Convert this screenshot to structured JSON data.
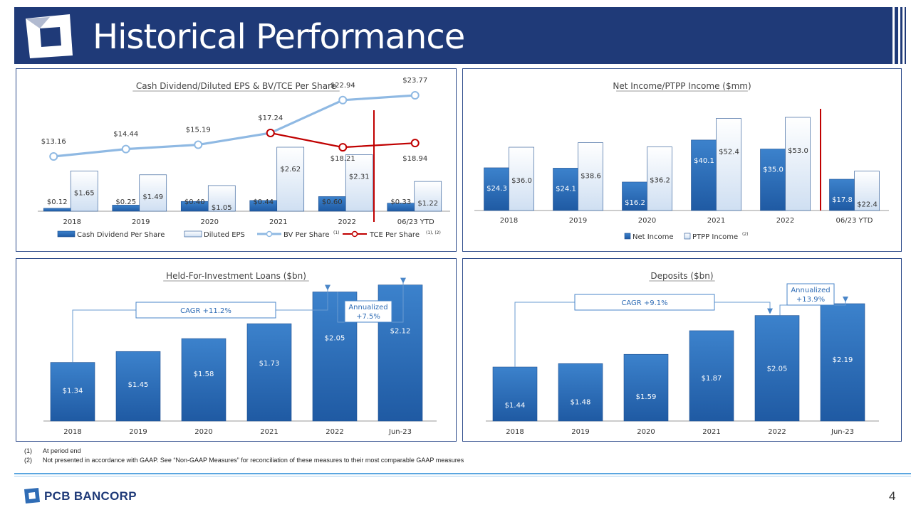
{
  "header": {
    "title": "Historical Performance"
  },
  "footnotes": [
    {
      "num": "(1)",
      "text": "At period end"
    },
    {
      "num": "(2)",
      "text": "Not presented in accordance with GAAP. See “Non-GAAP Measures” for reconciliation of these measures to their most comparable GAAP measures"
    }
  ],
  "footer": {
    "brand": "PCB BANCORP",
    "page": "4"
  },
  "colors": {
    "navy": "#1f3a78",
    "bar_dark": "#2f6cb5",
    "bar_light": "#e4edf8",
    "line_bv": "#8fb9e3",
    "line_tce": "#c00000",
    "divider": "#c00000"
  },
  "chart_data": [
    {
      "type": "bar",
      "title": "Cash Dividend/Diluted EPS & BV/TCE Per Share",
      "categories": [
        "2018",
        "2019",
        "2020",
        "2021",
        "2022",
        "06/23 YTD"
      ],
      "series": [
        {
          "name": "Cash Dividend Per Share",
          "values": [
            0.12,
            0.25,
            0.4,
            0.44,
            0.6,
            0.33
          ],
          "labels": [
            "$0.12",
            "$0.25",
            "$0.40",
            "$0.44",
            "$0.60",
            "$0.33"
          ]
        },
        {
          "name": "Diluted EPS",
          "values": [
            1.65,
            1.49,
            1.05,
            2.62,
            2.31,
            1.22
          ],
          "labels": [
            "$1.65",
            "$1.49",
            "$1.05",
            "$2.62",
            "$2.31",
            "$1.22"
          ]
        }
      ],
      "lines": [
        {
          "name": "BV Per Share",
          "sup": "(1)",
          "values": [
            13.16,
            14.44,
            15.19,
            17.24,
            22.94,
            23.77
          ],
          "labels": [
            "$13.16",
            "$14.44",
            "$15.19",
            "$17.24",
            "$22.94",
            "$23.77"
          ]
        },
        {
          "name": "TCE Per Share",
          "sup": "(1), (2)",
          "values": [
            null,
            null,
            null,
            17.24,
            18.21,
            18.94
          ],
          "labels": [
            "",
            "",
            "",
            "",
            "$18.21",
            "$18.94"
          ]
        }
      ],
      "legend": "bottom"
    },
    {
      "type": "bar",
      "title": "Net Income/PTPP Income ($mm)",
      "categories": [
        "2018",
        "2019",
        "2020",
        "2021",
        "2022",
        "06/23 YTD"
      ],
      "series": [
        {
          "name": "Net Income",
          "values": [
            24.3,
            24.1,
            16.2,
            40.1,
            35.0,
            17.8
          ],
          "labels": [
            "$24.3",
            "$24.1",
            "$16.2",
            "$40.1",
            "$35.0",
            "$17.8"
          ]
        },
        {
          "name": "PTPP Income",
          "sup": "(2)",
          "values": [
            36.0,
            38.6,
            36.2,
            52.4,
            53.0,
            22.4
          ],
          "labels": [
            "$36.0",
            "$38.6",
            "$36.2",
            "$52.4",
            "$53.0",
            "$22.4"
          ]
        }
      ],
      "legend": "bottom"
    },
    {
      "type": "bar",
      "title": "Held-For-Investment Loans ($bn)",
      "categories": [
        "2018",
        "2019",
        "2020",
        "2021",
        "2022",
        "Jun-23"
      ],
      "values": [
        1.34,
        1.45,
        1.58,
        1.73,
        2.05,
        2.12
      ],
      "labels": [
        "$1.34",
        "$1.45",
        "$1.58",
        "$1.73",
        "$2.05",
        "$2.12"
      ],
      "annotations": {
        "cagr": "CAGR +11.2%",
        "annualized": [
          "Annualized",
          "+7.5%"
        ]
      }
    },
    {
      "type": "bar",
      "title": "Deposits ($bn)",
      "categories": [
        "2018",
        "2019",
        "2020",
        "2021",
        "2022",
        "Jun-23"
      ],
      "values": [
        1.44,
        1.48,
        1.59,
        1.87,
        2.05,
        2.19
      ],
      "labels": [
        "$1.44",
        "$1.48",
        "$1.59",
        "$1.87",
        "$2.05",
        "$2.19"
      ],
      "annotations": {
        "cagr": "CAGR +9.1%",
        "annualized": [
          "Annualized",
          "+13.9%"
        ]
      }
    }
  ]
}
